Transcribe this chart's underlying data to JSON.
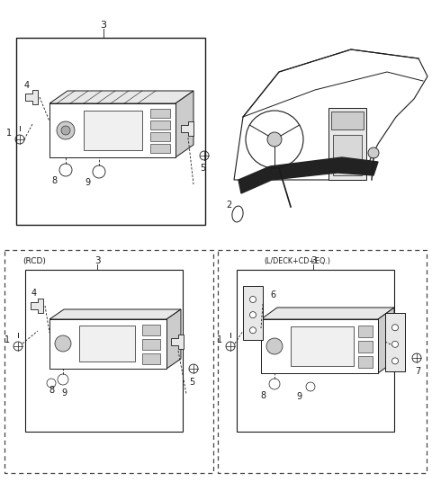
{
  "bg_color": "#ffffff",
  "line_color": "#1a1a1a",
  "dashed_line_color": "#444444",
  "gray_light": "#e8e8e8",
  "gray_mid": "#cccccc",
  "gray_dark": "#aaaaaa"
}
